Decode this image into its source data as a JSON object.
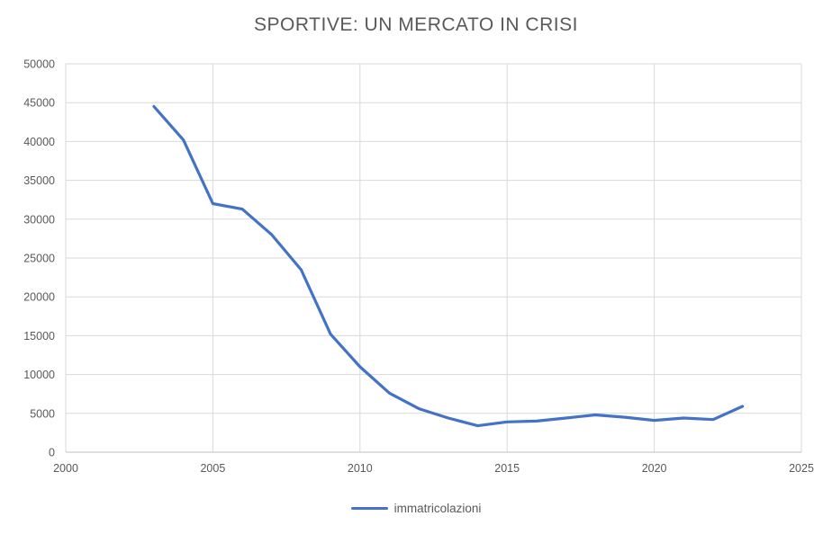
{
  "title": "SPORTIVE: UN MERCATO IN CRISI",
  "colors": {
    "line": "#4472C4",
    "gridline": "#D9D9D9",
    "axis_line": "#BFBFBF",
    "text": "#595959"
  },
  "legend": {
    "items": [
      {
        "label": "immatricolazioni",
        "color": "#4472C4"
      }
    ],
    "position": "bottom-center"
  },
  "chart_data": {
    "type": "line",
    "title": "SPORTIVE: UN MERCATO IN CRISI",
    "x": [
      2003,
      2004,
      2005,
      2006,
      2007,
      2008,
      2009,
      2010,
      2011,
      2012,
      2013,
      2014,
      2015,
      2016,
      2017,
      2018,
      2019,
      2020,
      2021,
      2022,
      2023
    ],
    "series": [
      {
        "name": "immatricolazioni",
        "color": "#4472C4",
        "values": [
          44500,
          40200,
          32000,
          31300,
          28000,
          23500,
          15200,
          11000,
          7600,
          5600,
          4400,
          3400,
          3900,
          4000,
          4400,
          4800,
          4500,
          4100,
          4400,
          4200,
          5900
        ]
      }
    ],
    "xlabel": "",
    "ylabel": "",
    "xlim": [
      2000,
      2025
    ],
    "ylim": [
      0,
      50000
    ],
    "x_ticks": [
      2000,
      2005,
      2010,
      2015,
      2020,
      2025
    ],
    "y_ticks": [
      0,
      5000,
      10000,
      15000,
      20000,
      25000,
      30000,
      35000,
      40000,
      45000,
      50000
    ],
    "grid": true,
    "legend_position": "bottom"
  }
}
